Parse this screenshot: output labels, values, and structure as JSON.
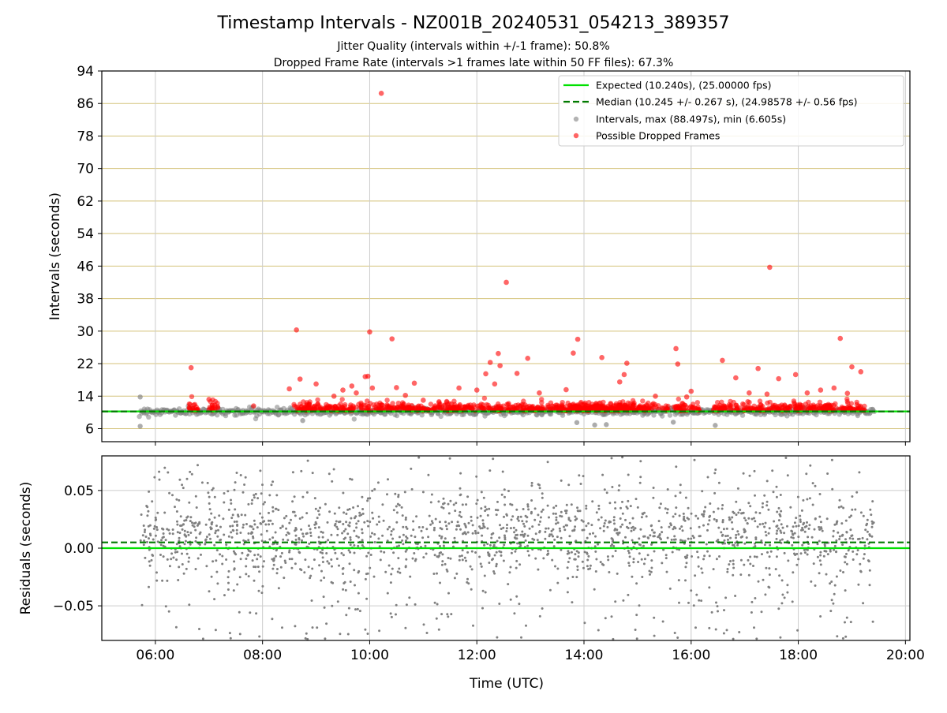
{
  "figure": {
    "title": "Timestamp Intervals - NZ001B_20240531_054213_389357",
    "subtitle_1": "Jitter Quality (intervals within +/-1 frame): 50.8%",
    "subtitle_2": "Dropped Frame Rate (intervals >1 frames late within 50 FF files): 67.3%",
    "xlabel": "Time (UTC)",
    "colors": {
      "expected": "#00e000",
      "median": "#007a00",
      "intervals": "#808080",
      "dropped": "#ff0000",
      "hgrid_top": "#d4c27a",
      "grid": "#cccccc"
    }
  },
  "chart_data": [
    {
      "type": "scatter",
      "panel": "intervals",
      "ylabel": "Intervals (seconds)",
      "ylim": [
        2.8,
        94
      ],
      "xlim": [
        "05:00",
        "20:05"
      ],
      "x_ticks": [
        "06:00",
        "08:00",
        "10:00",
        "12:00",
        "14:00",
        "16:00",
        "18:00",
        "20:00"
      ],
      "y_ticks": [
        6,
        14,
        22,
        30,
        38,
        46,
        54,
        62,
        70,
        78,
        86,
        94
      ],
      "grid": true,
      "legend_position": "top-right",
      "legend": [
        "Expected (10.240s), (25.00000 fps)",
        "Median (10.245 +/- 0.267 s), (24.98578 +/- 0.56 fps)",
        "Intervals, max (88.497s), min (6.605s)",
        "Possible Dropped Frames"
      ],
      "expected_line": 10.24,
      "median_line": 10.245,
      "data_time_range": [
        "05:42",
        "19:25"
      ],
      "intervals_baseline": 10.24,
      "intervals_extremes": [
        {
          "t": "05:43",
          "y": 13.8
        },
        {
          "t": "05:43",
          "y": 6.6
        },
        {
          "t": "13:52",
          "y": 7.5
        },
        {
          "t": "14:12",
          "y": 6.9
        },
        {
          "t": "14:25",
          "y": 7.0
        },
        {
          "t": "16:27",
          "y": 6.8
        },
        {
          "t": "15:40",
          "y": 7.6
        },
        {
          "t": "08:45",
          "y": 8.0
        }
      ],
      "dropped_outliers": [
        {
          "t": "06:40",
          "y": 21.0
        },
        {
          "t": "06:43",
          "y": 11.8
        },
        {
          "t": "07:00",
          "y": 13.2
        },
        {
          "t": "07:50",
          "y": 11.6
        },
        {
          "t": "08:30",
          "y": 15.8
        },
        {
          "t": "08:38",
          "y": 30.3
        },
        {
          "t": "08:42",
          "y": 18.2
        },
        {
          "t": "09:00",
          "y": 17.0
        },
        {
          "t": "09:20",
          "y": 14.0
        },
        {
          "t": "09:30",
          "y": 15.5
        },
        {
          "t": "09:40",
          "y": 16.5
        },
        {
          "t": "09:45",
          "y": 14.8
        },
        {
          "t": "09:55",
          "y": 18.8
        },
        {
          "t": "09:58",
          "y": 18.9
        },
        {
          "t": "10:00",
          "y": 29.8
        },
        {
          "t": "10:03",
          "y": 16.0
        },
        {
          "t": "10:13",
          "y": 88.5
        },
        {
          "t": "10:25",
          "y": 28.1
        },
        {
          "t": "10:30",
          "y": 16.1
        },
        {
          "t": "10:40",
          "y": 14.2
        },
        {
          "t": "10:50",
          "y": 17.2
        },
        {
          "t": "11:00",
          "y": 13.0
        },
        {
          "t": "11:40",
          "y": 16.0
        },
        {
          "t": "12:00",
          "y": 15.5
        },
        {
          "t": "12:10",
          "y": 19.5
        },
        {
          "t": "12:15",
          "y": 22.3
        },
        {
          "t": "12:20",
          "y": 17.0
        },
        {
          "t": "12:24",
          "y": 24.5
        },
        {
          "t": "12:26",
          "y": 21.5
        },
        {
          "t": "12:33",
          "y": 42.0
        },
        {
          "t": "12:45",
          "y": 19.6
        },
        {
          "t": "12:57",
          "y": 23.3
        },
        {
          "t": "13:10",
          "y": 14.8
        },
        {
          "t": "13:40",
          "y": 15.6
        },
        {
          "t": "13:53",
          "y": 28.0
        },
        {
          "t": "13:48",
          "y": 24.6
        },
        {
          "t": "14:00",
          "y": 12.0
        },
        {
          "t": "14:20",
          "y": 23.5
        },
        {
          "t": "14:40",
          "y": 17.5
        },
        {
          "t": "14:45",
          "y": 19.3
        },
        {
          "t": "14:48",
          "y": 22.1
        },
        {
          "t": "15:20",
          "y": 14.0
        },
        {
          "t": "15:43",
          "y": 25.7
        },
        {
          "t": "15:45",
          "y": 21.9
        },
        {
          "t": "15:55",
          "y": 13.8
        },
        {
          "t": "16:00",
          "y": 15.2
        },
        {
          "t": "16:35",
          "y": 22.8
        },
        {
          "t": "16:50",
          "y": 18.5
        },
        {
          "t": "17:05",
          "y": 14.8
        },
        {
          "t": "17:15",
          "y": 20.8
        },
        {
          "t": "17:25",
          "y": 14.5
        },
        {
          "t": "17:28",
          "y": 45.7
        },
        {
          "t": "17:38",
          "y": 18.3
        },
        {
          "t": "17:57",
          "y": 19.3
        },
        {
          "t": "18:10",
          "y": 14.8
        },
        {
          "t": "18:25",
          "y": 15.5
        },
        {
          "t": "18:40",
          "y": 16.0
        },
        {
          "t": "18:47",
          "y": 28.2
        },
        {
          "t": "18:55",
          "y": 14.7
        },
        {
          "t": "19:00",
          "y": 21.2
        },
        {
          "t": "19:10",
          "y": 20.0
        }
      ]
    },
    {
      "type": "scatter",
      "panel": "residuals",
      "ylabel": "Residuals (seconds)",
      "ylim": [
        -0.08,
        0.08
      ],
      "y_ticks": [
        -0.05,
        0.0,
        0.05
      ],
      "y_tick_labels": [
        "−0.05",
        "0.00",
        "0.05"
      ],
      "grid": true,
      "expected_line": 0.0,
      "median_line": 0.005,
      "data_time_range": [
        "05:42",
        "19:25"
      ],
      "residual_typical_range": [
        -0.08,
        0.08
      ],
      "residual_dense_band": [
        -0.01,
        0.03
      ]
    }
  ]
}
